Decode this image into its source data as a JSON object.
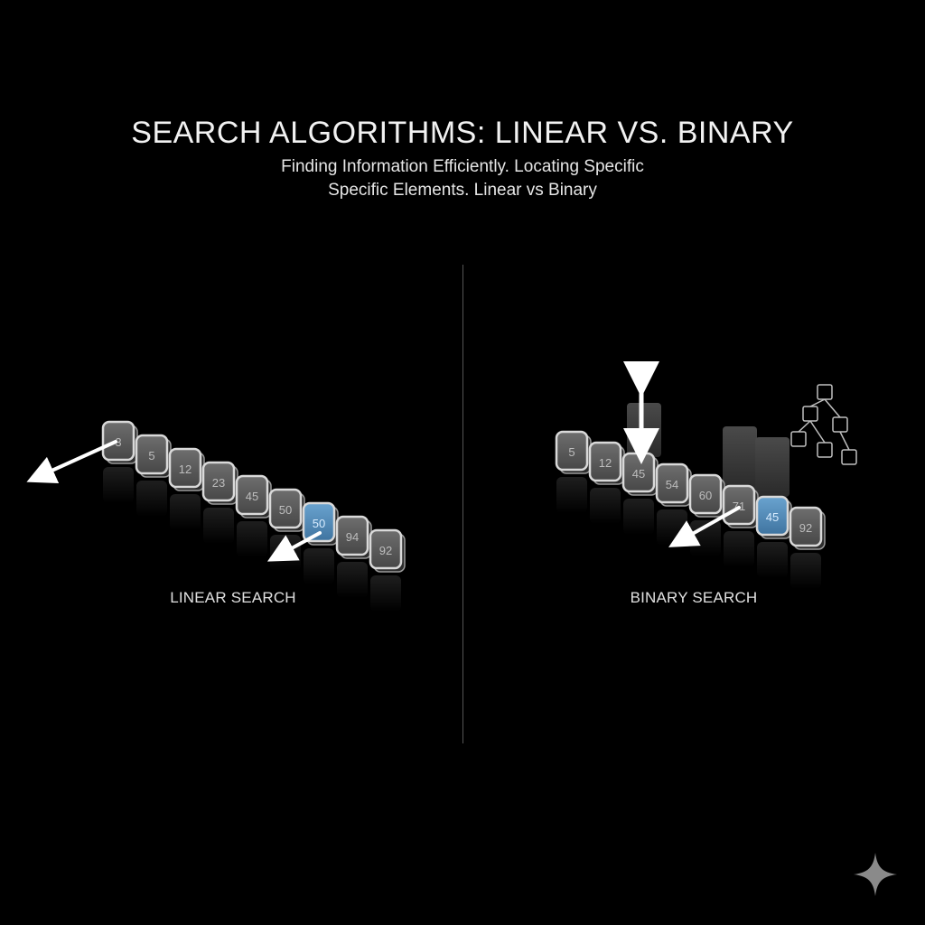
{
  "header": {
    "title": "SEARCH ALGORITHMS: LINEAR VS. BINARY",
    "subtitle_line1": "Finding Information Efficiently. Locating Specific",
    "subtitle_line2": "Specific Elements. Linear vs Binary"
  },
  "linear": {
    "label": "LINEAR SEARCH",
    "cells": [
      "3",
      "5",
      "12",
      "23",
      "45",
      "50",
      "50",
      "94",
      "92"
    ],
    "highlight_index": 6
  },
  "binary": {
    "label": "BINARY SEARCH",
    "cells": [
      "5",
      "12",
      "45",
      "54",
      "60",
      "71",
      "45",
      "92"
    ],
    "highlight_index": 6
  },
  "colors": {
    "background": "#000000",
    "cell_face": "#5a5a5a",
    "cell_border": "#d9d9d9",
    "highlight": "#4f86b3",
    "arrow": "#ffffff"
  },
  "icons": {
    "corner": "sparkle-icon",
    "tree": "node-tree-icon"
  }
}
